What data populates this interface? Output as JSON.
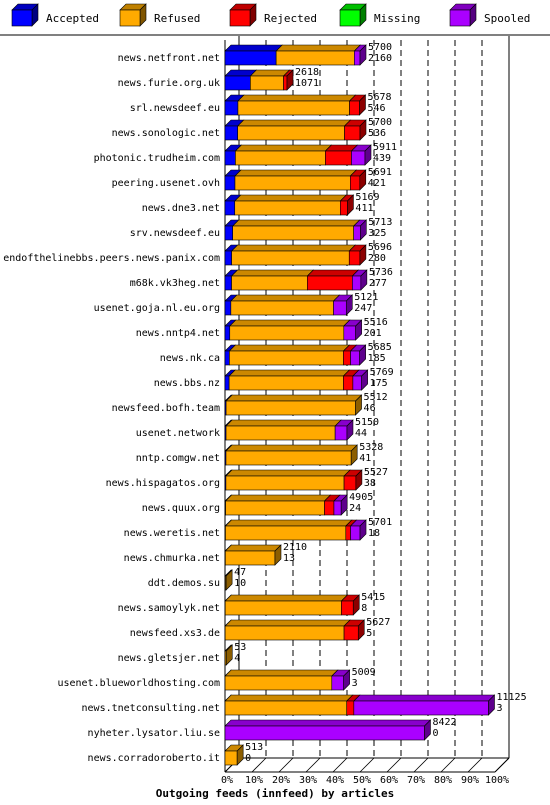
{
  "chart_data": {
    "type": "bar",
    "stacked": true,
    "orientation": "horizontal",
    "title": "Outgoing feeds (innfeed) by articles",
    "xlim": [
      0,
      100
    ],
    "x_ticks": [
      "0%",
      "10%",
      "20%",
      "30%",
      "40%",
      "50%",
      "60%",
      "70%",
      "80%",
      "90%",
      "100%"
    ],
    "grid": "vertical dashed",
    "legend_position": "top",
    "legend": [
      {
        "key": "accepted",
        "label": "Accepted",
        "color": "#0000ff"
      },
      {
        "key": "refused",
        "label": "Refused",
        "color": "#ffaa00"
      },
      {
        "key": "rejected",
        "label": "Rejected",
        "color": "#ff0000"
      },
      {
        "key": "missing",
        "label": "Missing",
        "color": "#00ff00"
      },
      {
        "key": "spooled",
        "label": "Spooled",
        "color": "#aa00ff"
      }
    ],
    "rows": [
      {
        "name": "news.netfront.net",
        "total": "5700",
        "accepted": "2160",
        "a": 2160,
        "r": 3300,
        "j": 0,
        "s": 240
      },
      {
        "name": "news.furie.org.uk",
        "total": "2618",
        "accepted": "1071",
        "a": 1071,
        "r": 1400,
        "j": 147,
        "s": 0
      },
      {
        "name": "srl.newsdeef.eu",
        "total": "5678",
        "accepted": "546",
        "a": 546,
        "r": 4712,
        "j": 420,
        "s": 0
      },
      {
        "name": "news.sonologic.net",
        "total": "5700",
        "accepted": "536",
        "a": 536,
        "r": 4510,
        "j": 654,
        "s": 0
      },
      {
        "name": "photonic.trudheim.com",
        "total": "5911",
        "accepted": "439",
        "a": 439,
        "r": 3800,
        "j": 1100,
        "s": 572
      },
      {
        "name": "peering.usenet.ovh",
        "total": "5691",
        "accepted": "421",
        "a": 421,
        "r": 4870,
        "j": 400,
        "s": 0
      },
      {
        "name": "news.dne3.net",
        "total": "5169",
        "accepted": "411",
        "a": 411,
        "r": 4458,
        "j": 300,
        "s": 0
      },
      {
        "name": "srv.newsdeef.eu",
        "total": "5713",
        "accepted": "325",
        "a": 325,
        "r": 5108,
        "j": 0,
        "s": 280
      },
      {
        "name": "endofthelinebbs.peers.news.panix.com",
        "total": "5696",
        "accepted": "280",
        "a": 280,
        "r": 4966,
        "j": 450,
        "s": 0
      },
      {
        "name": "m68k.vk3heg.net",
        "total": "5736",
        "accepted": "277",
        "a": 277,
        "r": 3200,
        "j": 1900,
        "s": 359
      },
      {
        "name": "usenet.goja.nl.eu.org",
        "total": "5121",
        "accepted": "247",
        "a": 247,
        "r": 4334,
        "j": 0,
        "s": 540
      },
      {
        "name": "news.nntp4.net",
        "total": "5516",
        "accepted": "201",
        "a": 201,
        "r": 4815,
        "j": 0,
        "s": 500
      },
      {
        "name": "news.nk.ca",
        "total": "5685",
        "accepted": "185",
        "a": 185,
        "r": 4815,
        "j": 300,
        "s": 385
      },
      {
        "name": "news.bbs.nz",
        "total": "5769",
        "accepted": "175",
        "a": 175,
        "r": 4825,
        "j": 400,
        "s": 369
      },
      {
        "name": "newsfeed.bofh.team",
        "total": "5512",
        "accepted": "46",
        "a": 46,
        "r": 5466,
        "j": 0,
        "s": 0
      },
      {
        "name": "usenet.network",
        "total": "5150",
        "accepted": "44",
        "a": 44,
        "r": 4606,
        "j": 0,
        "s": 500
      },
      {
        "name": "nntp.comgw.net",
        "total": "5328",
        "accepted": "41",
        "a": 41,
        "r": 5287,
        "j": 0,
        "s": 0
      },
      {
        "name": "news.hispagatos.org",
        "total": "5527",
        "accepted": "38",
        "a": 38,
        "r": 4989,
        "j": 500,
        "s": 0
      },
      {
        "name": "news.quux.org",
        "total": "4905",
        "accepted": "24",
        "a": 24,
        "r": 4176,
        "j": 400,
        "s": 305
      },
      {
        "name": "news.weretis.net",
        "total": "5701",
        "accepted": "18",
        "a": 18,
        "r": 5082,
        "j": 200,
        "s": 401
      },
      {
        "name": "news.chmurka.net",
        "total": "2110",
        "accepted": "13",
        "a": 13,
        "r": 2097,
        "j": 0,
        "s": 0
      },
      {
        "name": "ddt.demos.su",
        "total": "47",
        "accepted": "10",
        "a": 10,
        "r": 37,
        "j": 0,
        "s": 0
      },
      {
        "name": "news.samoylyk.net",
        "total": "5415",
        "accepted": "8",
        "a": 8,
        "r": 4907,
        "j": 500,
        "s": 0
      },
      {
        "name": "newsfeed.xs3.de",
        "total": "5627",
        "accepted": "5",
        "a": 5,
        "r": 5022,
        "j": 600,
        "s": 0
      },
      {
        "name": "news.gletsjer.net",
        "total": "53",
        "accepted": "4",
        "a": 4,
        "r": 49,
        "j": 0,
        "s": 0
      },
      {
        "name": "usenet.blueworldhosting.com",
        "total": "5009",
        "accepted": "3",
        "a": 3,
        "r": 4506,
        "j": 0,
        "s": 500
      },
      {
        "name": "news.tnetconsulting.net",
        "total": "11125",
        "accepted": "3",
        "a": 3,
        "r": 5137,
        "j": 300,
        "s": 5685
      },
      {
        "name": "nyheter.lysator.liu.se",
        "total": "8422",
        "accepted": "0",
        "a": 0,
        "r": 0,
        "j": 0,
        "s": 8422
      },
      {
        "name": "news.corradoroberto.it",
        "total": "513",
        "accepted": "0",
        "a": 0,
        "r": 513,
        "j": 0,
        "s": 0
      }
    ]
  }
}
